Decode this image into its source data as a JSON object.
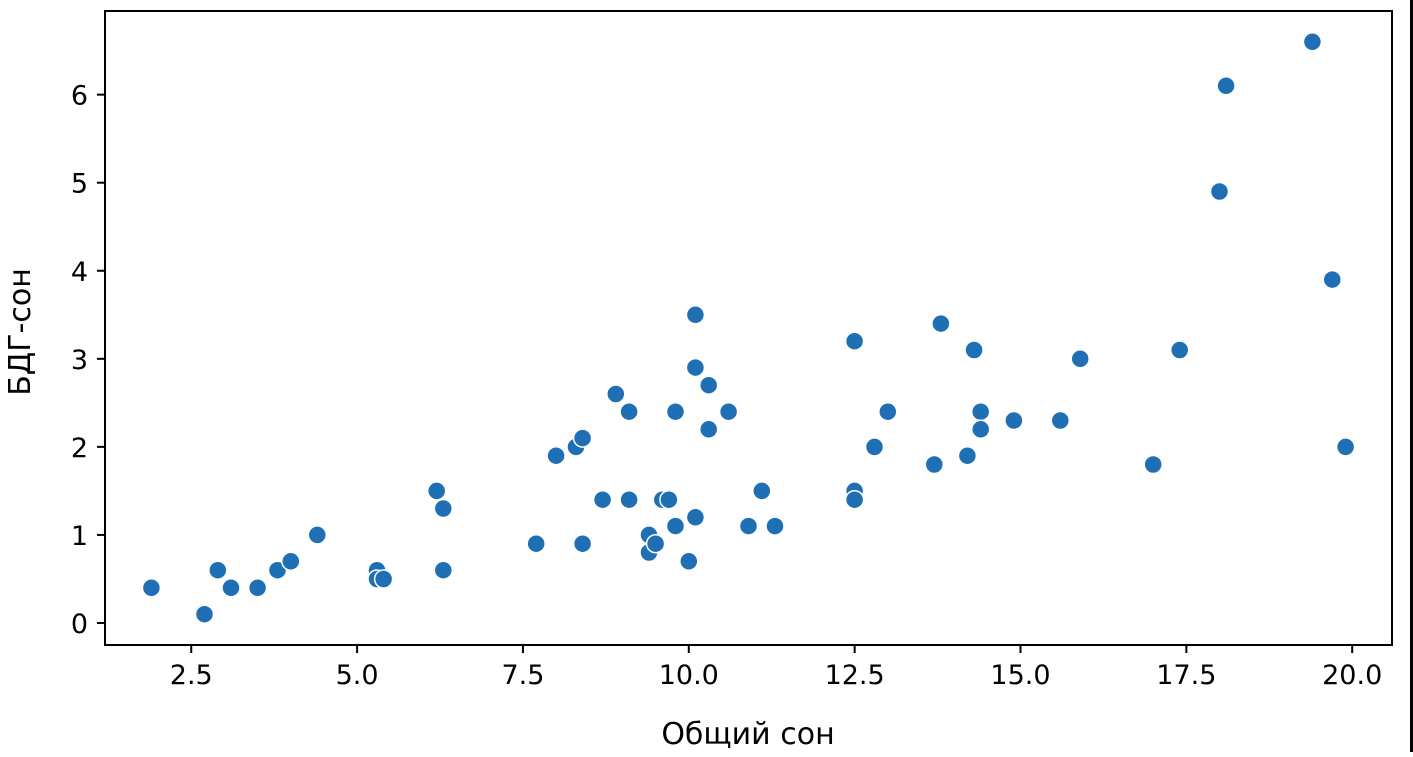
{
  "chart_data": {
    "type": "scatter",
    "title": "",
    "xlabel": "Общий сон",
    "ylabel": "БДГ-сон",
    "xlim": [
      1.2,
      20.6
    ],
    "ylim": [
      -0.25,
      6.95
    ],
    "xticks": [
      2.5,
      5.0,
      7.5,
      10.0,
      12.5,
      15.0,
      17.5,
      20.0
    ],
    "xtick_labels": [
      "2.5",
      "5.0",
      "7.5",
      "10.0",
      "12.5",
      "15.0",
      "17.5",
      "20.0"
    ],
    "yticks": [
      0,
      1,
      2,
      3,
      4,
      5,
      6
    ],
    "ytick_labels": [
      "0",
      "1",
      "2",
      "3",
      "4",
      "5",
      "6"
    ],
    "grid": false,
    "point_color": "#1f6fb4",
    "point_edge_color": "#ffffff",
    "series": [
      {
        "points": [
          [
            1.9,
            0.4
          ],
          [
            2.7,
            0.1
          ],
          [
            2.9,
            0.6
          ],
          [
            3.1,
            0.4
          ],
          [
            3.5,
            0.4
          ],
          [
            3.8,
            0.6
          ],
          [
            4.0,
            0.7
          ],
          [
            4.4,
            1.0
          ],
          [
            5.3,
            0.6
          ],
          [
            5.3,
            0.5
          ],
          [
            5.4,
            0.5
          ],
          [
            6.2,
            1.5
          ],
          [
            6.3,
            1.3
          ],
          [
            6.3,
            0.6
          ],
          [
            7.7,
            0.9
          ],
          [
            8.0,
            1.9
          ],
          [
            8.3,
            2.0
          ],
          [
            8.4,
            2.1
          ],
          [
            8.4,
            0.9
          ],
          [
            8.7,
            1.4
          ],
          [
            8.9,
            2.6
          ],
          [
            9.1,
            2.4
          ],
          [
            9.1,
            1.4
          ],
          [
            9.4,
            1.0
          ],
          [
            9.4,
            0.8
          ],
          [
            9.5,
            0.9
          ],
          [
            9.6,
            1.4
          ],
          [
            9.7,
            1.4
          ],
          [
            9.8,
            2.4
          ],
          [
            9.8,
            1.1
          ],
          [
            10.0,
            0.7
          ],
          [
            10.1,
            3.5
          ],
          [
            10.1,
            2.9
          ],
          [
            10.1,
            1.2
          ],
          [
            10.3,
            2.7
          ],
          [
            10.3,
            2.2
          ],
          [
            10.6,
            2.4
          ],
          [
            10.9,
            1.1
          ],
          [
            11.1,
            1.5
          ],
          [
            11.3,
            1.1
          ],
          [
            12.5,
            3.2
          ],
          [
            12.5,
            1.5
          ],
          [
            12.5,
            1.4
          ],
          [
            12.8,
            2.0
          ],
          [
            13.0,
            2.4
          ],
          [
            13.7,
            1.8
          ],
          [
            13.8,
            3.4
          ],
          [
            14.2,
            1.9
          ],
          [
            14.3,
            3.1
          ],
          [
            14.4,
            2.4
          ],
          [
            14.4,
            2.2
          ],
          [
            14.9,
            2.3
          ],
          [
            15.6,
            2.3
          ],
          [
            15.9,
            3.0
          ],
          [
            17.0,
            1.8
          ],
          [
            17.4,
            3.1
          ],
          [
            18.0,
            4.9
          ],
          [
            18.1,
            6.1
          ],
          [
            19.4,
            6.6
          ],
          [
            19.7,
            3.9
          ],
          [
            19.9,
            2.0
          ]
        ]
      }
    ]
  }
}
